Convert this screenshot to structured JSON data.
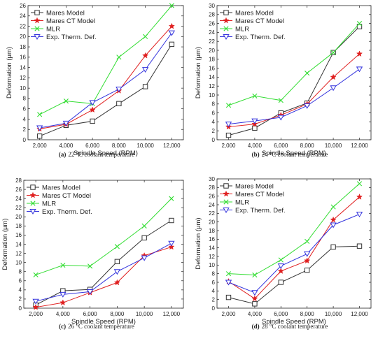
{
  "chart_data": [
    {
      "type": "line",
      "caption_label": "(a)",
      "caption_text": "22 °C coolant temperature",
      "xlabel": "Spindle Speed (RPM)",
      "ylabel": "Deformation (μm)",
      "x": [
        2000,
        4000,
        6000,
        8000,
        10000,
        12000
      ],
      "xtick_labels": [
        "2,000",
        "4,000",
        "6,000",
        "8,000",
        "10,000",
        "12,000"
      ],
      "ylim": [
        0,
        26
      ],
      "yticks": [
        0,
        2,
        4,
        6,
        8,
        10,
        12,
        14,
        16,
        18,
        20,
        22,
        24,
        26
      ],
      "legend_position": "top-left",
      "grid": false,
      "series": [
        {
          "name": "Mares Model",
          "color": "#333333",
          "marker": "square",
          "values": [
            0.7,
            2.8,
            3.6,
            7.0,
            10.3,
            18.5
          ]
        },
        {
          "name": "Mares CT Model",
          "color": "#e02020",
          "marker": "star",
          "values": [
            2.1,
            3.0,
            5.8,
            9.5,
            16.3,
            22.0
          ]
        },
        {
          "name": "MLR",
          "color": "#33dd33",
          "marker": "x",
          "values": [
            4.9,
            7.5,
            7.0,
            16.0,
            20.0,
            26.0
          ]
        },
        {
          "name": "Exp. Therm. Def.",
          "color": "#3333dd",
          "marker": "triangle-down",
          "values": [
            2.3,
            3.2,
            7.2,
            9.8,
            13.6,
            20.7
          ]
        }
      ]
    },
    {
      "type": "line",
      "caption_label": "(b)",
      "caption_text": "24 °C coolant temperature",
      "xlabel": "Spindle Speed (RPM)",
      "ylabel": "Deformation (μm)",
      "x": [
        2000,
        4000,
        6000,
        8000,
        10000,
        12000
      ],
      "xtick_labels": [
        "2,000",
        "4,000",
        "6,000",
        "8,000",
        "10,000",
        "12,000"
      ],
      "ylim": [
        0,
        30
      ],
      "yticks": [
        0,
        2,
        4,
        6,
        8,
        10,
        12,
        14,
        16,
        18,
        20,
        22,
        24,
        26,
        28,
        30
      ],
      "legend_position": "top-left",
      "grid": false,
      "series": [
        {
          "name": "Mares Model",
          "color": "#333333",
          "marker": "square",
          "values": [
            1.0,
            2.6,
            6.0,
            8.2,
            19.5,
            25.3
          ]
        },
        {
          "name": "Mares CT Model",
          "color": "#e02020",
          "marker": "star",
          "values": [
            2.9,
            3.5,
            5.5,
            8.0,
            14.0,
            19.2
          ]
        },
        {
          "name": "MLR",
          "color": "#33dd33",
          "marker": "x",
          "values": [
            7.7,
            9.8,
            8.8,
            14.9,
            19.5,
            26.0
          ]
        },
        {
          "name": "Exp. Therm. Def.",
          "color": "#3333dd",
          "marker": "triangle-down",
          "values": [
            3.5,
            4.2,
            5.0,
            7.6,
            11.6,
            15.8
          ]
        }
      ]
    },
    {
      "type": "line",
      "caption_label": "(c)",
      "caption_text": "26 °C coolant temperature",
      "xlabel": "Spindle Speed (RPM)",
      "ylabel": "Deformation (μm)",
      "x": [
        2000,
        4000,
        6000,
        8000,
        10000,
        12000
      ],
      "xtick_labels": [
        "2,000",
        "4,000",
        "6,000",
        "8,000",
        "10,000",
        "12,000"
      ],
      "ylim": [
        0,
        28
      ],
      "yticks": [
        0,
        2,
        4,
        6,
        8,
        10,
        12,
        14,
        16,
        18,
        20,
        22,
        24,
        26,
        28
      ],
      "legend_position": "top-left",
      "grid": false,
      "series": [
        {
          "name": "Mares Model",
          "color": "#333333",
          "marker": "square",
          "values": [
            0.7,
            3.8,
            4.1,
            10.2,
            15.4,
            19.2
          ]
        },
        {
          "name": "Mares CT Model",
          "color": "#e02020",
          "marker": "star",
          "values": [
            0.2,
            1.2,
            3.4,
            5.6,
            11.5,
            13.4
          ]
        },
        {
          "name": "MLR",
          "color": "#33dd33",
          "marker": "x",
          "values": [
            7.3,
            9.4,
            9.2,
            13.5,
            18.0,
            24.0
          ]
        },
        {
          "name": "Exp. Therm. Def.",
          "color": "#3333dd",
          "marker": "triangle-down",
          "values": [
            1.5,
            3.0,
            3.6,
            8.0,
            11.0,
            14.2
          ]
        }
      ]
    },
    {
      "type": "line",
      "caption_label": "(d)",
      "caption_text": "28 °C coolant temperature",
      "xlabel": "Spindle Speed (RPM)",
      "ylabel": "Deformation (μm)",
      "x": [
        2000,
        4000,
        6000,
        8000,
        10000,
        12000
      ],
      "xtick_labels": [
        "2,000",
        "4,000",
        "6,000",
        "8,000",
        "10,000",
        "12,000"
      ],
      "ylim": [
        0,
        30
      ],
      "yticks": [
        0,
        2,
        4,
        6,
        8,
        10,
        12,
        14,
        16,
        18,
        20,
        22,
        24,
        26,
        28,
        30
      ],
      "legend_position": "top-left",
      "grid": false,
      "series": [
        {
          "name": "Mares Model",
          "color": "#333333",
          "marker": "square",
          "values": [
            2.5,
            1.0,
            6.0,
            8.8,
            14.2,
            14.4
          ]
        },
        {
          "name": "Mares CT Model",
          "color": "#e02020",
          "marker": "star",
          "values": [
            6.2,
            2.2,
            8.6,
            11.0,
            20.5,
            25.8
          ]
        },
        {
          "name": "MLR",
          "color": "#33dd33",
          "marker": "x",
          "values": [
            8.0,
            7.7,
            11.2,
            15.5,
            23.5,
            28.9
          ]
        },
        {
          "name": "Exp. Therm. Def.",
          "color": "#3333dd",
          "marker": "triangle-down",
          "values": [
            6.0,
            3.6,
            9.8,
            12.6,
            19.3,
            21.8
          ]
        }
      ]
    }
  ]
}
